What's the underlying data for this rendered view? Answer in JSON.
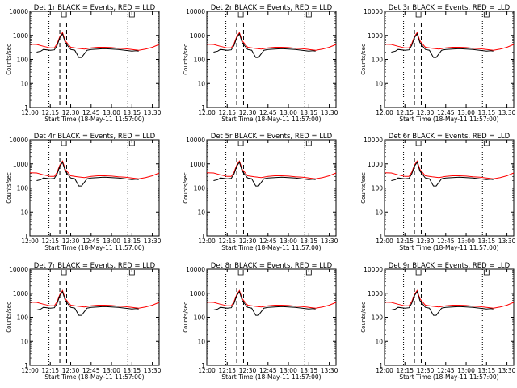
{
  "layout_note": "",
  "x_ticks": [
    "12:00",
    "12:15",
    "12:30",
    "12:45",
    "13:00",
    "13:15",
    "13:30"
  ],
  "y_ticks": [
    "1",
    "10",
    "100",
    "1000",
    "10000"
  ],
  "colors": {
    "events": "#000000",
    "lld": "#ff0000"
  },
  "chart_data": [
    {
      "type": "line",
      "title": "Det 1r BLACK = Events, RED = LLD",
      "xlabel": "Start Time (18-May-11 11:57:00)",
      "ylabel": "Counts/sec",
      "yscale": "log",
      "ylim": [
        1,
        10000
      ],
      "xlim": [
        "12:00",
        "13:35"
      ]
    },
    {
      "type": "line",
      "title": "Det 2r BLACK = Events, RED = LLD",
      "xlabel": "Start Time (18-May-11 11:57:00)",
      "ylabel": "Counts/sec",
      "yscale": "log",
      "ylim": [
        1,
        10000
      ],
      "xlim": [
        "12:00",
        "13:35"
      ]
    },
    {
      "type": "line",
      "title": "Det 3r BLACK = Events, RED = LLD",
      "xlabel": "Start Time (18-May-11 11:57:00)",
      "ylabel": "Counts/sec",
      "yscale": "log",
      "ylim": [
        1,
        10000
      ],
      "xlim": [
        "12:00",
        "13:35"
      ]
    },
    {
      "type": "line",
      "title": "Det 4r BLACK = Events, RED = LLD",
      "xlabel": "Start Time (18-May-11 11:57:00)",
      "ylabel": "Counts/sec",
      "yscale": "log",
      "ylim": [
        1,
        10000
      ],
      "xlim": [
        "12:00",
        "13:35"
      ]
    },
    {
      "type": "line",
      "title": "Det 5r BLACK = Events, RED = LLD",
      "xlabel": "Start Time (18-May-11 11:57:00)",
      "ylabel": "Counts/sec",
      "yscale": "log",
      "ylim": [
        1,
        10000
      ],
      "xlim": [
        "12:00",
        "13:35"
      ]
    },
    {
      "type": "line",
      "title": "Det 6r BLACK = Events, RED = LLD",
      "xlabel": "Start Time (18-May-11 11:57:00)",
      "ylabel": "Counts/sec",
      "yscale": "log",
      "ylim": [
        1,
        10000
      ],
      "xlim": [
        "12:00",
        "13:35"
      ]
    },
    {
      "type": "line",
      "title": "Det 7r BLACK = Events, RED = LLD",
      "xlabel": "Start Time (18-May-11 11:57:00)",
      "ylabel": "Counts/sec",
      "yscale": "log",
      "ylim": [
        1,
        10000
      ],
      "xlim": [
        "12:00",
        "13:35"
      ]
    },
    {
      "type": "line",
      "title": "Det 8r BLACK = Events, RED = LLD",
      "xlabel": "Start Time (18-May-11 11:57:00)",
      "ylabel": "Counts/sec",
      "yscale": "log",
      "ylim": [
        1,
        10000
      ],
      "xlim": [
        "12:00",
        "13:35"
      ]
    },
    {
      "type": "line",
      "title": "Det 9r BLACK = Events, RED = LLD",
      "xlabel": "Start Time (18-May-11 11:57:00)",
      "ylabel": "Counts/sec",
      "yscale": "log",
      "ylim": [
        1,
        10000
      ],
      "xlim": [
        "12:00",
        "13:35"
      ]
    }
  ],
  "series_template": {
    "lld": {
      "x": [
        "12:00",
        "12:05",
        "12:10",
        "12:15",
        "12:18",
        "12:20",
        "12:22",
        "12:24",
        "12:26",
        "12:30",
        "12:35",
        "12:40",
        "12:45",
        "12:50",
        "12:55",
        "13:00",
        "13:05",
        "13:10",
        "13:15",
        "13:20",
        "13:25",
        "13:30",
        "13:35"
      ],
      "y": [
        430,
        420,
        350,
        300,
        300,
        450,
        900,
        1300,
        600,
        320,
        290,
        270,
        300,
        320,
        320,
        310,
        290,
        280,
        260,
        240,
        270,
        320,
        420
      ]
    },
    "events": {
      "x": [
        "12:05",
        "12:08",
        "12:10",
        "12:15",
        "12:18",
        "12:20",
        "12:22",
        "12:24",
        "12:26",
        "12:30",
        "12:33",
        "12:36",
        "12:38",
        "12:42",
        "12:45",
        "12:50",
        "12:55",
        "13:00",
        "13:05",
        "13:10",
        "13:15",
        "13:18",
        "13:20"
      ],
      "y": [
        200,
        220,
        260,
        240,
        250,
        380,
        800,
        1150,
        500,
        260,
        240,
        120,
        120,
        240,
        260,
        270,
        280,
        270,
        260,
        240,
        220,
        230,
        220
      ]
    },
    "markers": {
      "dotted": [
        "12:14",
        "13:12"
      ],
      "dashed": [
        "12:22",
        "12:27"
      ],
      "flags": [
        "12:25",
        "13:15"
      ]
    }
  }
}
